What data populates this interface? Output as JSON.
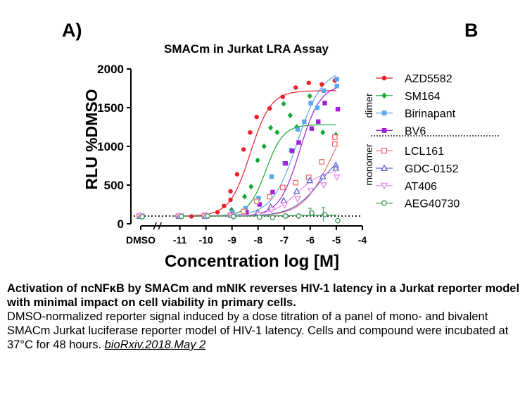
{
  "panel_labels": {
    "a": "A)",
    "b": "B"
  },
  "chart_data": {
    "type": "scatter",
    "title": "SMACm in Jurkat LRA Assay",
    "xlabel": "Concentration log [M]",
    "ylabel": "RLU %DMSO",
    "xlim": [
      -12.5,
      -4
    ],
    "ylim": [
      0,
      2000
    ],
    "x_tick_labels": [
      {
        "x": -12.5,
        "label": "DMSO"
      },
      {
        "x": -11,
        "label": "-11"
      },
      {
        "x": -10,
        "label": "-10"
      },
      {
        "x": -9,
        "label": "-9"
      },
      {
        "x": -8,
        "label": "-8"
      },
      {
        "x": -7,
        "label": "-7"
      },
      {
        "x": -6,
        "label": "-6"
      },
      {
        "x": -5,
        "label": "-5"
      },
      {
        "x": -4,
        "label": "-4"
      }
    ],
    "y_ticks": [
      0,
      500,
      1000,
      1500,
      2000
    ],
    "baseline": 100,
    "legend_groups": [
      {
        "label": "dimer",
        "series": [
          0,
          1,
          2,
          3
        ]
      },
      {
        "label": "monomer",
        "series": [
          4,
          5,
          6,
          7
        ]
      }
    ],
    "series": [
      {
        "name": "AZD5582",
        "color": "#e8212b",
        "marker": "circle-filled",
        "curve": {
          "bottom": 100,
          "top": 1720,
          "ec50": -8.3,
          "hill": 1.1
        },
        "points": [
          [
            -12.5,
            100
          ],
          [
            -11,
            100
          ],
          [
            -10.5,
            95
          ],
          [
            -10,
            105
          ],
          [
            -9.5,
            150
          ],
          [
            -9.25,
            230
          ],
          [
            -9,
            420
          ],
          [
            -9,
            310
          ],
          [
            -8.75,
            640
          ],
          [
            -8.5,
            960
          ],
          [
            -8.25,
            1180
          ],
          [
            -8,
            1380
          ],
          [
            -7.5,
            1490
          ],
          [
            -7,
            1640
          ],
          [
            -6.5,
            1760
          ],
          [
            -6,
            1820
          ],
          [
            -5.5,
            1800
          ],
          [
            -5,
            1850
          ]
        ]
      },
      {
        "name": "SM164",
        "color": "#12a835",
        "marker": "diamond-filled",
        "curve": {
          "bottom": 100,
          "top": 1280,
          "ec50": -7.7,
          "hill": 1.3
        },
        "points": [
          [
            -12.5,
            100
          ],
          [
            -11,
            100
          ],
          [
            -10,
            100
          ],
          [
            -9,
            180
          ],
          [
            -8.5,
            350
          ],
          [
            -8.25,
            480
          ],
          [
            -8,
            820
          ],
          [
            -7.75,
            1000
          ],
          [
            -7.5,
            1240
          ],
          [
            -7.25,
            1180
          ],
          [
            -7,
            1550
          ],
          [
            -6.75,
            1400
          ],
          [
            -6.5,
            1250
          ],
          [
            -6,
            1650
          ],
          [
            -5.5,
            1180
          ],
          [
            -5,
            1150
          ]
        ]
      },
      {
        "name": "Birinapant",
        "color": "#5aa7f0",
        "marker": "square-filled",
        "curve": {
          "bottom": 100,
          "top": 2000,
          "ec50": -6.5,
          "hill": 0.9
        },
        "points": [
          [
            -12.5,
            100
          ],
          [
            -11,
            100
          ],
          [
            -10,
            100
          ],
          [
            -9,
            150
          ],
          [
            -8.5,
            200
          ],
          [
            -8,
            330
          ],
          [
            -7.5,
            610
          ],
          [
            -7,
            780
          ],
          [
            -6.75,
            950
          ],
          [
            -6.5,
            1220
          ],
          [
            -6.25,
            1320
          ],
          [
            -6,
            1560
          ],
          [
            -5.75,
            1500
          ],
          [
            -5.5,
            1720
          ],
          [
            -5,
            1780
          ],
          [
            -5,
            1870
          ]
        ]
      },
      {
        "name": "BV6",
        "color": "#a21fd8",
        "marker": "square-filled",
        "curve": {
          "bottom": 100,
          "top": 1800,
          "ec50": -6.4,
          "hill": 1.1
        },
        "points": [
          [
            -12.5,
            100
          ],
          [
            -11,
            100
          ],
          [
            -10,
            100
          ],
          [
            -9,
            100
          ],
          [
            -8.5,
            150
          ],
          [
            -8,
            250
          ],
          [
            -7.5,
            410
          ],
          [
            -7,
            780
          ],
          [
            -6.75,
            940
          ],
          [
            -6.5,
            1050
          ],
          [
            -6,
            1230
          ],
          [
            -5.75,
            1320
          ],
          [
            -5.5,
            1560
          ],
          [
            -5,
            1480
          ]
        ]
      },
      {
        "name": "LCL161",
        "color": "#ee6e6e",
        "marker": "square-open",
        "curve": {
          "bottom": 100,
          "top": 1600,
          "ec50": -5.2,
          "hill": 0.8
        },
        "points": [
          [
            -12.5,
            100
          ],
          [
            -11,
            100
          ],
          [
            -10,
            110
          ],
          [
            -9,
            120
          ],
          [
            -8.5,
            160
          ],
          [
            -8,
            290
          ],
          [
            -7.5,
            350
          ],
          [
            -7,
            470
          ],
          [
            -6.5,
            530
          ],
          [
            -6,
            600
          ],
          [
            -5.5,
            800
          ],
          [
            -5,
            1030
          ],
          [
            -5,
            1120
          ]
        ]
      },
      {
        "name": "GDC-0152",
        "color": "#5b63cc",
        "marker": "triangle-open",
        "curve": {
          "bottom": 100,
          "top": 1000,
          "ec50": -5.6,
          "hill": 0.8
        },
        "points": [
          [
            -12.5,
            100
          ],
          [
            -11,
            100
          ],
          [
            -10,
            100
          ],
          [
            -9,
            110
          ],
          [
            -8,
            150
          ],
          [
            -7.5,
            220
          ],
          [
            -7,
            300
          ],
          [
            -6.5,
            420
          ],
          [
            -6,
            560
          ],
          [
            -5.5,
            610
          ],
          [
            -5,
            760
          ],
          [
            -5,
            720
          ]
        ]
      },
      {
        "name": "AT406",
        "color": "#e987e9",
        "marker": "triangle-down-open",
        "curve": {
          "bottom": 100,
          "top": 700,
          "ec50": -6.5,
          "hill": 0.9
        },
        "points": [
          [
            -12.5,
            100
          ],
          [
            -11,
            100
          ],
          [
            -10,
            100
          ],
          [
            -9,
            100
          ],
          [
            -8,
            120
          ],
          [
            -7.5,
            180
          ],
          [
            -7,
            240
          ],
          [
            -6.5,
            320
          ],
          [
            -6,
            430
          ],
          [
            -5.5,
            500
          ],
          [
            -5,
            600
          ]
        ]
      },
      {
        "name": "AEG40730",
        "color": "#3a9a52",
        "marker": "circle-open",
        "curve": {
          "bottom": 100,
          "top": 110,
          "ec50": -7,
          "hill": 1
        },
        "points": [
          [
            -12.5,
            90
          ],
          [
            -11,
            95
          ],
          [
            -10,
            100
          ],
          [
            -9,
            95
          ],
          [
            -8,
            85
          ],
          [
            -7.5,
            80
          ],
          [
            -7,
            100
          ],
          [
            -6.5,
            100
          ],
          [
            -6,
            140
          ],
          [
            -5.5,
            120
          ],
          [
            -5,
            40
          ]
        ]
      }
    ]
  },
  "caption": {
    "title": "Activation of ncNFκB by SMACm and mNIK reverses HIV-1 latency in a Jurkat reporter model with minimal impact on cell viability in primary cells.",
    "body": "DMSO-normalized reporter signal induced by a dose titration of a panel of mono- and bivalent SMACm Jurkat luciferase reporter model of HIV-1 latency. Cells and compound were incubated at 37°C for 48 hours. ",
    "citation": "bioRxiv.2018.May 2"
  }
}
